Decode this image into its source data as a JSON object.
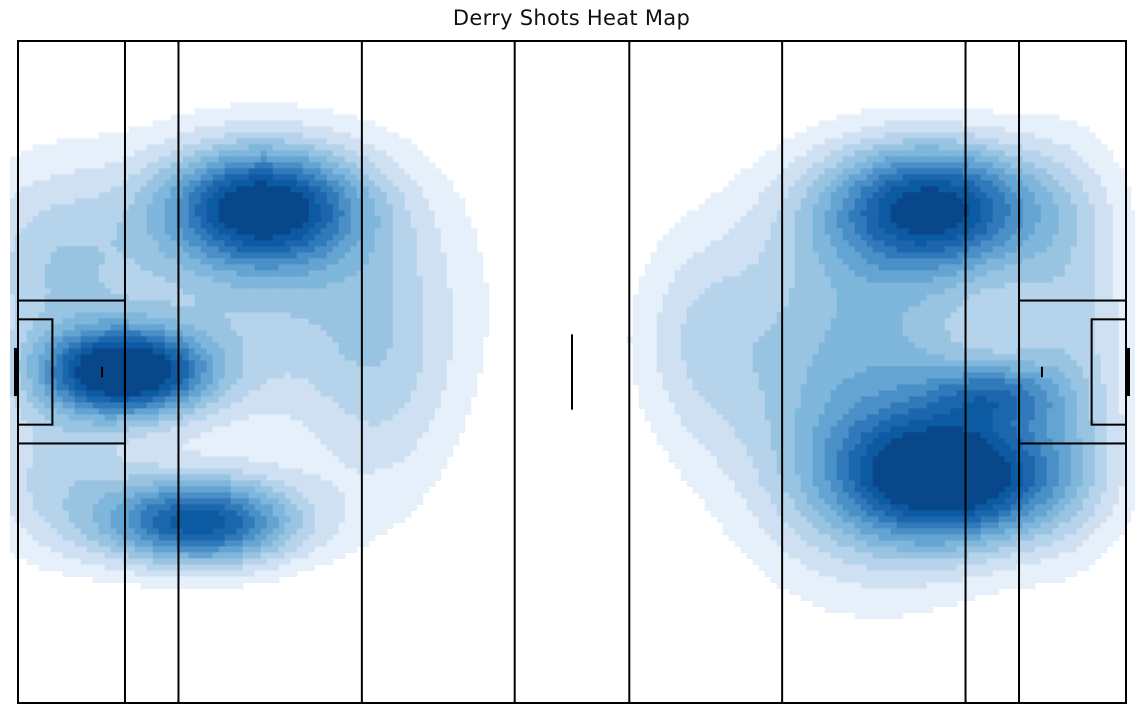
{
  "chart_data": {
    "type": "heatmap",
    "title": "Derry Shots Heat Map",
    "xlabel": "",
    "ylabel": "",
    "grid": false,
    "legend": "none",
    "pitch": {
      "length_m": 145,
      "width_m": 88,
      "line_distances_m": [
        14,
        21,
        45,
        65,
        80,
        100,
        124,
        131
      ],
      "small_rectangle_m": {
        "depth": 4.5,
        "width": 14
      },
      "large_rectangle_m": {
        "depth": 14,
        "width": 19
      },
      "penalty_spot_from_end_m": 11,
      "center_mark_length_m": 10
    },
    "colors": [
      "#e6f0fa",
      "#cfe0f3",
      "#b5d3ea",
      "#98c4e2",
      "#7eb6dc",
      "#64a4d2",
      "#4a90c7",
      "#3079bb",
      "#1c66ad",
      "#0c5aa2",
      "#08478a"
    ],
    "kde_components": [
      {
        "x": 32,
        "y": 22,
        "sx": 9,
        "sy": 5.5,
        "w": 1.0
      },
      {
        "x": 14,
        "y": 44,
        "sx": 7.5,
        "sy": 4,
        "w": 1.15
      },
      {
        "x": 24,
        "y": 64,
        "sx": 9,
        "sy": 4.2,
        "w": 1.0
      },
      {
        "x": 32,
        "y": 33,
        "sx": 18,
        "sy": 14,
        "w": 0.35
      },
      {
        "x": 4,
        "y": 30,
        "sx": 8,
        "sy": 10,
        "w": 0.3
      },
      {
        "x": 5,
        "y": 58,
        "sx": 8,
        "sy": 8,
        "w": 0.3
      },
      {
        "x": 48,
        "y": 45,
        "sx": 7,
        "sy": 14,
        "w": 0.22
      },
      {
        "x": 120,
        "y": 22,
        "sx": 10,
        "sy": 6,
        "w": 1.0
      },
      {
        "x": 123,
        "y": 58,
        "sx": 10,
        "sy": 6,
        "w": 1.05
      },
      {
        "x": 128,
        "y": 47,
        "sx": 6,
        "sy": 3,
        "w": 0.45
      },
      {
        "x": 110,
        "y": 38,
        "sx": 14,
        "sy": 14,
        "w": 0.42
      },
      {
        "x": 112,
        "y": 58,
        "sx": 12,
        "sy": 12,
        "w": 0.35
      },
      {
        "x": 89,
        "y": 40,
        "sx": 6,
        "sy": 10,
        "w": 0.2
      },
      {
        "x": 138,
        "y": 40,
        "sx": 6,
        "sy": 18,
        "w": 0.3
      }
    ]
  }
}
